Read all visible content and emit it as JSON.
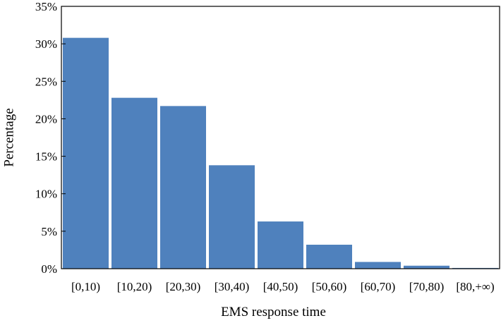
{
  "chart_data": {
    "type": "bar",
    "title": "",
    "xlabel": "EMS response time",
    "ylabel": "Percentage",
    "categories": [
      "[0,10)",
      "[10,20)",
      "[20,30)",
      "[30,40)",
      "[40,50)",
      "[50,60)",
      "[60,70)",
      "[70,80)",
      "[80,+∞)"
    ],
    "values": [
      30.8,
      22.8,
      21.7,
      13.8,
      6.3,
      3.2,
      0.9,
      0.4,
      0.1
    ],
    "ylim": [
      0,
      35
    ],
    "yticks": [
      0,
      5,
      10,
      15,
      20,
      25,
      30,
      35
    ],
    "ytick_labels": [
      "0%",
      "5%",
      "10%",
      "15%",
      "20%",
      "25%",
      "30%",
      "35%"
    ],
    "grid": false,
    "bar_color": "#4f81bd"
  }
}
